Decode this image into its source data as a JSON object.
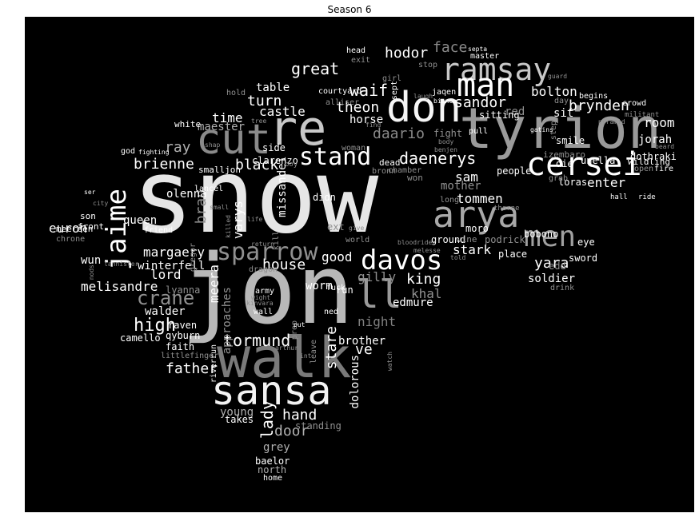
{
  "title": "Season 6",
  "words": [
    {
      "t": "snow",
      "c": "#e6e6e6"
    },
    {
      "t": "jon",
      "c": "#b8b8b8"
    },
    {
      "t": "walk",
      "c": "#7a7a7a"
    },
    {
      "t": "sansa",
      "c": "#f2f2f2"
    },
    {
      "t": "tyrion",
      "c": "#9a9a9a"
    },
    {
      "t": "re",
      "c": "#c8c8c8"
    },
    {
      "t": "don",
      "c": "#f5f5f5"
    },
    {
      "t": "cut",
      "c": "#8a8a8a"
    },
    {
      "t": "cersei",
      "c": "#ffffff"
    },
    {
      "t": "arya",
      "c": "#a8a8a8"
    },
    {
      "t": "ramsay",
      "c": "#c8c8c8"
    },
    {
      "t": "man",
      "c": "#ffffff"
    },
    {
      "t": "davos",
      "c": "#ffffff"
    },
    {
      "t": "men",
      "c": "#a0a0a0"
    },
    {
      "t": "jaime",
      "c": "#ffffff"
    },
    {
      "t": "sparrow",
      "c": "#909090"
    },
    {
      "t": "ll",
      "c": "#9a9a9a"
    },
    {
      "t": "stand",
      "c": "#ffffff"
    },
    {
      "t": "crane",
      "c": "#909090"
    },
    {
      "t": "high",
      "c": "#ffffff"
    },
    {
      "t": "tormund",
      "c": "#ffffff"
    },
    {
      "t": "father",
      "c": "#ffffff"
    },
    {
      "t": "hand",
      "c": "#ffffff"
    },
    {
      "t": "door",
      "c": "#b0b0b0"
    },
    {
      "t": "lady",
      "c": "#ffffff"
    },
    {
      "t": "stare",
      "c": "#ffffff"
    },
    {
      "t": "daenerys",
      "c": "#ffffff"
    },
    {
      "t": "brynden",
      "c": "#ffffff"
    },
    {
      "t": "yara",
      "c": "#ffffff"
    },
    {
      "t": "king",
      "c": "#ffffff"
    },
    {
      "t": "house",
      "c": "#ffffff"
    },
    {
      "t": "brienne",
      "c": "#ffffff"
    },
    {
      "t": "black",
      "c": "#ffffff"
    },
    {
      "t": "great",
      "c": "#ffffff"
    },
    {
      "t": "hodor",
      "c": "#ffffff"
    },
    {
      "t": "face",
      "c": "#8a8a8a"
    },
    {
      "t": "sandor",
      "c": "#ffffff"
    },
    {
      "t": "theon",
      "c": "#ffffff"
    },
    {
      "t": "waif",
      "c": "#ffffff"
    },
    {
      "t": "daario",
      "c": "#8a8a8a"
    },
    {
      "t": "turn",
      "c": "#ffffff"
    },
    {
      "t": "castle",
      "c": "#ffffff"
    },
    {
      "t": "table",
      "c": "#ffffff"
    },
    {
      "t": "time",
      "c": "#ffffff"
    },
    {
      "t": "maester",
      "c": "#b0b0b0"
    },
    {
      "t": "ray",
      "c": "#b0b0b0"
    },
    {
      "t": "bran",
      "c": "#909090"
    },
    {
      "t": "bolton",
      "c": "#ffffff"
    },
    {
      "t": "room",
      "c": "#ffffff"
    },
    {
      "t": "enter",
      "c": "#ffffff"
    },
    {
      "t": "jorah",
      "c": "#ffffff"
    },
    {
      "t": "tommen",
      "c": "#ffffff"
    },
    {
      "t": "mother",
      "c": "#909090"
    },
    {
      "t": "sam",
      "c": "#ffffff"
    },
    {
      "t": "stark",
      "c": "#ffffff"
    },
    {
      "t": "good",
      "c": "#ffffff"
    },
    {
      "t": "khal",
      "c": "#909090"
    },
    {
      "t": "gilly",
      "c": "#909090"
    },
    {
      "t": "night",
      "c": "#808080"
    },
    {
      "t": "edmure",
      "c": "#ffffff"
    },
    {
      "t": "brother",
      "c": "#ffffff"
    },
    {
      "t": "ve",
      "c": "#ffffff"
    },
    {
      "t": "dolorous",
      "c": "#ffffff"
    },
    {
      "t": "soldier",
      "c": "#ffffff"
    },
    {
      "t": "melisandre",
      "c": "#ffffff"
    },
    {
      "t": "lord",
      "c": "#ffffff"
    },
    {
      "t": "walder",
      "c": "#ffffff"
    },
    {
      "t": "margaery",
      "c": "#ffffff"
    },
    {
      "t": "wun",
      "c": "#ffffff"
    },
    {
      "t": "euron",
      "c": "#ffffff"
    },
    {
      "t": "queen",
      "c": "#ffffff"
    },
    {
      "t": "olenna",
      "c": "#ffffff"
    },
    {
      "t": "varys",
      "c": "#ffffff"
    },
    {
      "t": "missandei",
      "c": "#ffffff"
    },
    {
      "t": "meera",
      "c": "#ffffff"
    },
    {
      "t": "approaches",
      "c": "#909090"
    },
    {
      "t": "worm",
      "c": "#ffffff"
    },
    {
      "t": "young",
      "c": "#b0b0b0"
    },
    {
      "t": "grey",
      "c": "#b0b0b0"
    },
    {
      "t": "winterfell",
      "c": "#ffffff"
    },
    {
      "t": "sword",
      "c": "#ffffff"
    },
    {
      "t": "red",
      "c": "#909090"
    },
    {
      "t": "sit",
      "c": "#ffffff"
    },
    {
      "t": "smile",
      "c": "#ffffff"
    },
    {
      "t": "fight",
      "c": "#909090"
    },
    {
      "t": "horse",
      "c": "#ffffff"
    },
    {
      "t": "north",
      "c": "#b0b0b0"
    },
    {
      "t": "takes",
      "c": "#ffffff"
    },
    {
      "t": "standing",
      "c": "#909090"
    },
    {
      "t": "baelor",
      "c": "#ffffff"
    },
    {
      "t": "home",
      "c": "#ffffff"
    },
    {
      "t": "faith",
      "c": "#ffffff"
    },
    {
      "t": "qyburn",
      "c": "#ffffff"
    },
    {
      "t": "raven",
      "c": "#ffffff"
    },
    {
      "t": "lyanna",
      "c": "#909090"
    },
    {
      "t": "camello",
      "c": "#ffffff"
    },
    {
      "t": "littlefinger",
      "c": "#909090"
    },
    {
      "t": "loras",
      "c": "#ffffff"
    },
    {
      "t": "people",
      "c": "#ffffff"
    },
    {
      "t": "die",
      "c": "#ffffff"
    },
    {
      "t": "unella",
      "c": "#ffffff"
    },
    {
      "t": "izembaro",
      "c": "#909090"
    },
    {
      "t": "dothraki",
      "c": "#ffffff"
    },
    {
      "t": "wildling",
      "c": "#ffffff"
    },
    {
      "t": "open",
      "c": "#909090"
    },
    {
      "t": "place",
      "c": "#ffffff"
    },
    {
      "t": "podrick",
      "c": "#909090"
    },
    {
      "t": "eye",
      "c": "#ffffff"
    },
    {
      "t": "bobono",
      "c": "#ffffff"
    },
    {
      "t": "moro",
      "c": "#ffffff"
    },
    {
      "t": "ground",
      "c": "#ffffff"
    },
    {
      "t": "wine",
      "c": "#909090"
    },
    {
      "t": "edd",
      "c": "#909090"
    },
    {
      "t": "drink",
      "c": "#909090"
    },
    {
      "t": "kill",
      "c": "#909090"
    },
    {
      "t": "ext",
      "c": "#909090"
    },
    {
      "t": "didn",
      "c": "#ffffff"
    },
    {
      "t": "long",
      "c": "#909090"
    },
    {
      "t": "run",
      "c": "#ffffff"
    },
    {
      "t": "ned",
      "c": "#ffffff"
    },
    {
      "t": "army",
      "c": "#ffffff"
    },
    {
      "t": "wall",
      "c": "#ffffff"
    },
    {
      "t": "fuck",
      "c": "#ffffff"
    },
    {
      "t": "woman",
      "c": "#909090"
    },
    {
      "t": "dead",
      "c": "#ffffff"
    },
    {
      "t": "bronn",
      "c": "#909090"
    },
    {
      "t": "chamber",
      "c": "#909090"
    },
    {
      "t": "won",
      "c": "#909090"
    },
    {
      "t": "clarenzo",
      "c": "#ffffff"
    },
    {
      "t": "side",
      "c": "#ffffff"
    },
    {
      "t": "smalljon",
      "c": "#ffffff"
    },
    {
      "t": "lancel",
      "c": "#ffffff"
    },
    {
      "t": "white",
      "c": "#ffffff"
    },
    {
      "t": "god",
      "c": "#ffffff"
    },
    {
      "t": "fighting",
      "c": "#ffffff"
    },
    {
      "t": "son",
      "c": "#ffffff"
    },
    {
      "t": "front",
      "c": "#ffffff"
    },
    {
      "t": "friend",
      "c": "#ffffff"
    },
    {
      "t": "meereen",
      "c": "#ffffff"
    },
    {
      "t": "chrone",
      "c": "#909090"
    },
    {
      "t": "head",
      "c": "#ffffff"
    },
    {
      "t": "exit",
      "c": "#909090"
    },
    {
      "t": "master",
      "c": "#ffffff"
    },
    {
      "t": "stop",
      "c": "#909090"
    },
    {
      "t": "girl",
      "c": "#909090"
    },
    {
      "t": "jaqen",
      "c": "#ffffff"
    },
    {
      "t": "courtyard",
      "c": "#ffffff"
    },
    {
      "t": "alliser",
      "c": "#909090"
    },
    {
      "t": "hold",
      "c": "#909090"
    },
    {
      "t": "sept",
      "c": "#ffffff"
    },
    {
      "t": "laugh",
      "c": "#909090"
    },
    {
      "t": "bianca",
      "c": "#ffffff"
    },
    {
      "t": "begins",
      "c": "#ffffff"
    },
    {
      "t": "day",
      "c": "#909090"
    },
    {
      "t": "crowd",
      "c": "#ffffff"
    },
    {
      "t": "militant",
      "c": "#909090"
    },
    {
      "t": "step",
      "c": "#909090"
    },
    {
      "t": "sitting",
      "c": "#ffffff"
    },
    {
      "t": "gatins",
      "c": "#ffffff"
    },
    {
      "t": "pyramid",
      "c": "#909090"
    },
    {
      "t": "hall",
      "c": "#ffffff"
    },
    {
      "t": "ride",
      "c": "#ffffff"
    },
    {
      "t": "grab",
      "c": "#909090"
    },
    {
      "t": "beard",
      "c": "#909090"
    },
    {
      "t": "fire",
      "c": "#ffffff"
    },
    {
      "t": "pull",
      "c": "#ffffff"
    },
    {
      "t": "benjen",
      "c": "#909090"
    },
    {
      "t": "thorne",
      "c": "#909090"
    },
    {
      "t": "septa",
      "c": "#ffffff"
    },
    {
      "t": "guard",
      "c": "#909090"
    },
    {
      "t": "gregor",
      "c": "#909090"
    },
    {
      "t": "kinvara",
      "c": "#909090"
    },
    {
      "t": "wight",
      "c": "#909090"
    },
    {
      "t": "prop",
      "c": "#909090"
    },
    {
      "t": "put",
      "c": "#ffffff"
    },
    {
      "t": "leave",
      "c": "#909090"
    },
    {
      "t": "watch",
      "c": "#909090"
    },
    {
      "t": "arthur",
      "c": "#909090"
    },
    {
      "t": "riverrun",
      "c": "#ffffff"
    },
    {
      "t": "dragon",
      "c": "#909090"
    },
    {
      "t": "world",
      "c": "#909090"
    },
    {
      "t": "melesse",
      "c": "#909090"
    },
    {
      "t": "bloodrider",
      "c": "#909090"
    },
    {
      "t": "told",
      "c": "#909090"
    },
    {
      "t": "lannister",
      "c": "#909090"
    },
    {
      "t": "nods",
      "c": "#909090"
    },
    {
      "t": "shap",
      "c": "#909090"
    },
    {
      "t": "boy",
      "c": "#909090"
    },
    {
      "t": "tree",
      "c": "#909090"
    },
    {
      "t": "find",
      "c": "#909090"
    },
    {
      "t": "body",
      "c": "#909090"
    },
    {
      "t": "give",
      "c": "#909090"
    },
    {
      "t": "killed",
      "c": "#909090"
    },
    {
      "t": "life",
      "c": "#909090"
    },
    {
      "t": "return",
      "c": "#909090"
    },
    {
      "t": "int",
      "c": "#909090"
    },
    {
      "t": "ser",
      "c": "#ffffff"
    },
    {
      "t": "city",
      "c": "#909090"
    },
    {
      "t": "small",
      "c": "#909090"
    }
  ]
}
